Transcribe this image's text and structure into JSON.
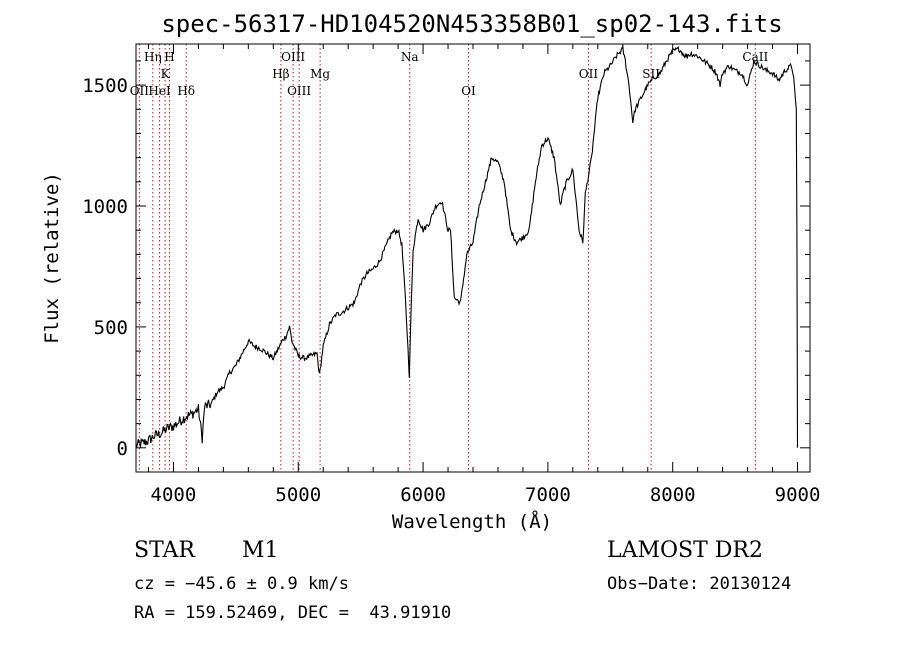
{
  "chart_data": {
    "type": "line",
    "title": "spec-56317-HD104520N453358B01_sp02-143.fits",
    "xlabel": "Wavelength (Å)",
    "ylabel": "Flux (relative)",
    "xlim": [
      3700,
      9100
    ],
    "ylim": [
      -100,
      1670
    ],
    "xticks": [
      4000,
      5000,
      6000,
      7000,
      8000,
      9000
    ],
    "yticks": [
      0,
      500,
      1000,
      1500
    ],
    "series": [
      {
        "name": "flux",
        "x": [
          3700,
          3760,
          3800,
          3850,
          3900,
          3950,
          4000,
          4050,
          4100,
          4150,
          4200,
          4230,
          4250,
          4300,
          4350,
          4400,
          4450,
          4500,
          4550,
          4600,
          4650,
          4700,
          4750,
          4800,
          4850,
          4880,
          4900,
          4930,
          4950,
          5000,
          5050,
          5100,
          5150,
          5170,
          5200,
          5250,
          5300,
          5350,
          5400,
          5450,
          5500,
          5550,
          5600,
          5650,
          5700,
          5750,
          5800,
          5830,
          5860,
          5880,
          5890,
          5900,
          5920,
          5960,
          6000,
          6050,
          6100,
          6150,
          6200,
          6220,
          6250,
          6300,
          6350,
          6400,
          6450,
          6500,
          6550,
          6600,
          6650,
          6700,
          6750,
          6800,
          6850,
          6900,
          6950,
          7000,
          7050,
          7100,
          7120,
          7150,
          7200,
          7250,
          7280,
          7300,
          7350,
          7400,
          7450,
          7500,
          7550,
          7600,
          7620,
          7650,
          7680,
          7700,
          7750,
          7800,
          7850,
          7900,
          7950,
          8000,
          8050,
          8100,
          8150,
          8200,
          8250,
          8300,
          8350,
          8380,
          8400,
          8450,
          8500,
          8550,
          8600,
          8650,
          8700,
          8750,
          8800,
          8850,
          8900,
          8950,
          8970,
          8990,
          8995,
          9000
        ],
        "values": [
          10,
          20,
          30,
          50,
          60,
          80,
          90,
          110,
          130,
          140,
          160,
          40,
          170,
          180,
          230,
          250,
          310,
          340,
          390,
          440,
          420,
          410,
          390,
          370,
          420,
          450,
          460,
          500,
          440,
          380,
          370,
          380,
          390,
          300,
          420,
          510,
          550,
          560,
          580,
          600,
          680,
          720,
          740,
          770,
          830,
          890,
          900,
          840,
          600,
          400,
          300,
          500,
          820,
          950,
          900,
          930,
          1000,
          1020,
          900,
          900,
          620,
          600,
          800,
          850,
          1000,
          1100,
          1200,
          1180,
          1100,
          900,
          850,
          870,
          900,
          1100,
          1250,
          1280,
          1200,
          1000,
          1050,
          1100,
          1150,
          900,
          850,
          1050,
          1200,
          1450,
          1550,
          1580,
          1620,
          1650,
          1600,
          1500,
          1350,
          1400,
          1450,
          1500,
          1530,
          1550,
          1600,
          1640,
          1650,
          1620,
          1630,
          1620,
          1600,
          1580,
          1550,
          1500,
          1550,
          1580,
          1560,
          1550,
          1500,
          1600,
          1580,
          1560,
          1550,
          1520,
          1560,
          1580,
          1530,
          1400,
          900,
          0
        ]
      }
    ],
    "spectral_lines": [
      {
        "label": "Hη",
        "wavelength": 3835,
        "row": 1
      },
      {
        "label": "H",
        "wavelength": 3968,
        "row": 1
      },
      {
        "label": "K",
        "wavelength": 3933,
        "row": 2
      },
      {
        "label": "OII",
        "wavelength": 3727,
        "row": 3
      },
      {
        "label": "HeI",
        "wavelength": 3889,
        "row": 3
      },
      {
        "label": "Hδ",
        "wavelength": 4102,
        "row": 3
      },
      {
        "label": "OIII",
        "wavelength": 4959,
        "row": 1
      },
      {
        "label": "Hβ",
        "wavelength": 4861,
        "row": 2
      },
      {
        "label": "Mg",
        "wavelength": 5175,
        "row": 2
      },
      {
        "label": "OIII",
        "wavelength": 5007,
        "row": 3
      },
      {
        "label": "Na",
        "wavelength": 5893,
        "row": 1
      },
      {
        "label": "OI",
        "wavelength": 6364,
        "row": 3
      },
      {
        "label": "OII",
        "wavelength": 7325,
        "row": 2
      },
      {
        "label": "SII",
        "wavelength": 7827,
        "row": 2
      },
      {
        "label": "CaII",
        "wavelength": 8662,
        "row": 1
      }
    ]
  },
  "info": {
    "class": "STAR",
    "subclass": "M1",
    "survey": "LAMOST DR2",
    "cz": "cz = −45.6 ± 0.9 km/s",
    "obs_date": "Obs−Date: 20130124",
    "radec": "RA = 159.52469, DEC =  43.91910"
  }
}
